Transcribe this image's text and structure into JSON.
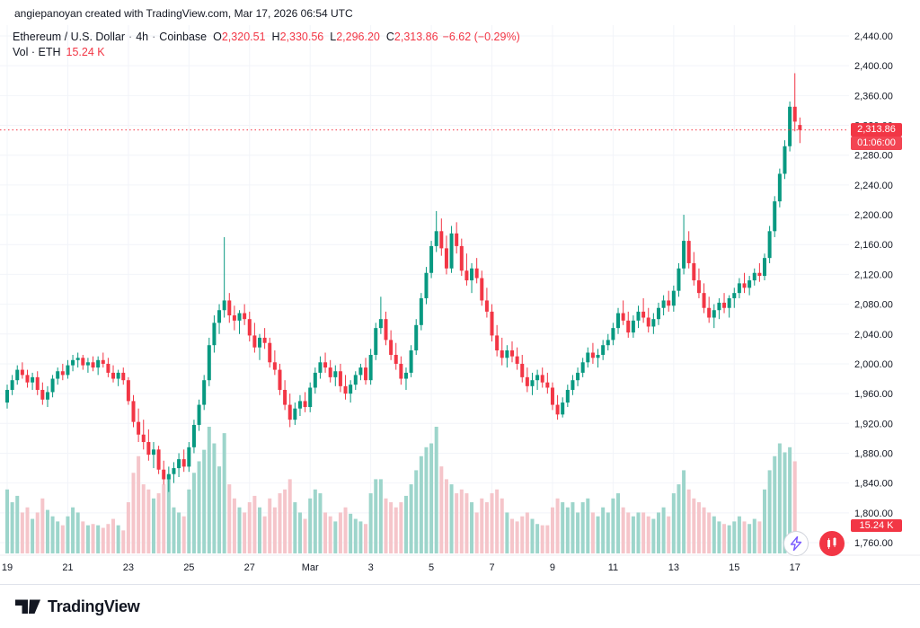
{
  "header": {
    "attribution": "angiepanoyan created with TradingView.com, Mar 17, 2026 06:54 UTC"
  },
  "legend": {
    "symbol": "Ethereum / U.S. Dollar",
    "dot": "·",
    "interval": "4h",
    "exchange": "Coinbase",
    "o_label": "O",
    "o_value": "2,320.51",
    "h_label": "H",
    "h_value": "2,330.56",
    "l_label": "L",
    "l_value": "2,296.20",
    "c_label": "C",
    "c_value": "2,313.86",
    "change": "−6.62 (−0.29%)",
    "volume_label": "Vol · ETH",
    "volume_value": "15.24 K"
  },
  "badges": {
    "price": "2,313.86",
    "countdown": "01:06:00",
    "volume": "15.24 K"
  },
  "price_scale": {
    "ticks": [
      "2,440.00",
      "2,400.00",
      "2,360.00",
      "2,320.00",
      "2,280.00",
      "2,240.00",
      "2,200.00",
      "2,160.00",
      "2,120.00",
      "2,080.00",
      "2,040.00",
      "2,000.00",
      "1,960.00",
      "1,920.00",
      "1,880.00",
      "1,840.00",
      "1,800.00",
      "1,760.00"
    ]
  },
  "footer": {
    "brand": "TradingView"
  },
  "colors": {
    "up": "#089981",
    "down": "#f23645",
    "vol_up": "#9dd5cb",
    "vol_down": "#f5c5ca",
    "grid": "#f2f4f9",
    "axis_text": "#131722",
    "badge_red": "#f23645"
  },
  "chart_data": {
    "type": "candlestick",
    "title": "Ethereum / U.S. Dollar, 4h, Coinbase",
    "interval_hours": 4,
    "volume_unit": "K ETH",
    "price_axis": {
      "min": 1760,
      "max": 2440,
      "tick_step": 40
    },
    "last_price": 2313.86,
    "last_ohlc": {
      "o": 2320.51,
      "h": 2330.56,
      "l": 2296.2,
      "c": 2313.86,
      "change": -6.62,
      "change_pct": -0.29
    },
    "x_labels": [
      {
        "i": 0,
        "t": "19"
      },
      {
        "i": 12,
        "t": "21"
      },
      {
        "i": 24,
        "t": "23"
      },
      {
        "i": 36,
        "t": "25"
      },
      {
        "i": 48,
        "t": "27"
      },
      {
        "i": 60,
        "t": "Mar"
      },
      {
        "i": 72,
        "t": "3"
      },
      {
        "i": 84,
        "t": "5"
      },
      {
        "i": 96,
        "t": "7"
      },
      {
        "i": 108,
        "t": "9"
      },
      {
        "i": 120,
        "t": "11"
      },
      {
        "i": 132,
        "t": "13"
      },
      {
        "i": 144,
        "t": "15"
      },
      {
        "i": 156,
        "t": "17"
      }
    ],
    "candles": [
      [
        1948,
        1972,
        1940,
        1965,
        50
      ],
      [
        1965,
        1985,
        1958,
        1978,
        40
      ],
      [
        1978,
        1998,
        1972,
        1992,
        45
      ],
      [
        1992,
        2002,
        1980,
        1985,
        32
      ],
      [
        1985,
        1992,
        1968,
        1975,
        36
      ],
      [
        1975,
        1988,
        1965,
        1982,
        27
      ],
      [
        1982,
        1990,
        1958,
        1965,
        32
      ],
      [
        1965,
        1975,
        1945,
        1952,
        43
      ],
      [
        1952,
        1970,
        1942,
        1962,
        34
      ],
      [
        1962,
        1985,
        1955,
        1980,
        29
      ],
      [
        1980,
        1995,
        1972,
        1990,
        25
      ],
      [
        1990,
        2000,
        1978,
        1985,
        22
      ],
      [
        1985,
        2005,
        1980,
        1998,
        29
      ],
      [
        1998,
        2012,
        1990,
        2005,
        36
      ],
      [
        2005,
        2015,
        1995,
        2008,
        32
      ],
      [
        2008,
        2012,
        1992,
        1998,
        25
      ],
      [
        1998,
        2008,
        1988,
        2002,
        22
      ],
      [
        2002,
        2010,
        1990,
        1995,
        23
      ],
      [
        1995,
        2010,
        1985,
        2005,
        22
      ],
      [
        2005,
        2015,
        1995,
        2000,
        20
      ],
      [
        2000,
        2008,
        1982,
        1988,
        23
      ],
      [
        1988,
        1998,
        1975,
        1980,
        27
      ],
      [
        1980,
        1992,
        1970,
        1988,
        22
      ],
      [
        1988,
        1995,
        1972,
        1978,
        18
      ],
      [
        1978,
        1982,
        1945,
        1950,
        40
      ],
      [
        1950,
        1958,
        1915,
        1922,
        63
      ],
      [
        1922,
        1940,
        1895,
        1905,
        76
      ],
      [
        1905,
        1925,
        1885,
        1895,
        54
      ],
      [
        1895,
        1912,
        1870,
        1878,
        50
      ],
      [
        1878,
        1895,
        1860,
        1885,
        43
      ],
      [
        1885,
        1890,
        1852,
        1858,
        47
      ],
      [
        1858,
        1870,
        1838,
        1845,
        54
      ],
      [
        1845,
        1862,
        1828,
        1852,
        61
      ],
      [
        1852,
        1868,
        1840,
        1860,
        36
      ],
      [
        1860,
        1880,
        1848,
        1872,
        32
      ],
      [
        1872,
        1885,
        1855,
        1862,
        29
      ],
      [
        1862,
        1895,
        1855,
        1888,
        50
      ],
      [
        1888,
        1925,
        1880,
        1918,
        63
      ],
      [
        1918,
        1952,
        1910,
        1945,
        72
      ],
      [
        1945,
        1985,
        1938,
        1978,
        81
      ],
      [
        1978,
        2035,
        1970,
        2025,
        99
      ],
      [
        2025,
        2065,
        2015,
        2055,
        86
      ],
      [
        2055,
        2080,
        2040,
        2072,
        68
      ],
      [
        2072,
        2170,
        2062,
        2085,
        94
      ],
      [
        2085,
        2095,
        2055,
        2065,
        54
      ],
      [
        2065,
        2078,
        2045,
        2058,
        43
      ],
      [
        2058,
        2072,
        2040,
        2068,
        36
      ],
      [
        2068,
        2080,
        2052,
        2060,
        32
      ],
      [
        2060,
        2070,
        2030,
        2038,
        40
      ],
      [
        2038,
        2055,
        2015,
        2022,
        45
      ],
      [
        2022,
        2040,
        2005,
        2035,
        36
      ],
      [
        2035,
        2048,
        2020,
        2028,
        29
      ],
      [
        2028,
        2035,
        1995,
        2002,
        43
      ],
      [
        2002,
        2018,
        1985,
        1992,
        36
      ],
      [
        1992,
        2000,
        1958,
        1965,
        47
      ],
      [
        1965,
        1978,
        1938,
        1945,
        50
      ],
      [
        1945,
        1960,
        1915,
        1925,
        58
      ],
      [
        1925,
        1948,
        1918,
        1940,
        40
      ],
      [
        1940,
        1958,
        1930,
        1950,
        32
      ],
      [
        1950,
        1962,
        1935,
        1942,
        27
      ],
      [
        1942,
        1975,
        1935,
        1968,
        43
      ],
      [
        1968,
        1995,
        1960,
        1988,
        50
      ],
      [
        1988,
        2010,
        1980,
        2002,
        47
      ],
      [
        2002,
        2015,
        1988,
        1995,
        32
      ],
      [
        1995,
        2005,
        1975,
        1982,
        29
      ],
      [
        1982,
        1998,
        1970,
        1990,
        25
      ],
      [
        1990,
        2000,
        1962,
        1970,
        32
      ],
      [
        1970,
        1985,
        1952,
        1960,
        36
      ],
      [
        1960,
        1978,
        1948,
        1972,
        31
      ],
      [
        1972,
        1990,
        1965,
        1985,
        27
      ],
      [
        1985,
        2000,
        1978,
        1995,
        25
      ],
      [
        1995,
        2008,
        1972,
        1978,
        23
      ],
      [
        1978,
        2020,
        1972,
        2012,
        47
      ],
      [
        2012,
        2055,
        2005,
        2048,
        58
      ],
      [
        2048,
        2090,
        2040,
        2060,
        58
      ],
      [
        2060,
        2070,
        2025,
        2032,
        43
      ],
      [
        2032,
        2045,
        2005,
        2012,
        40
      ],
      [
        2012,
        2028,
        1992,
        2000,
        36
      ],
      [
        2000,
        2010,
        1972,
        1980,
        40
      ],
      [
        1980,
        1995,
        1965,
        1988,
        45
      ],
      [
        1988,
        2025,
        1982,
        2018,
        54
      ],
      [
        2018,
        2060,
        2012,
        2052,
        65
      ],
      [
        2052,
        2095,
        2045,
        2088,
        76
      ],
      [
        2088,
        2130,
        2080,
        2122,
        83
      ],
      [
        2122,
        2165,
        2115,
        2158,
        86
      ],
      [
        2158,
        2205,
        2150,
        2178,
        99
      ],
      [
        2178,
        2195,
        2145,
        2155,
        68
      ],
      [
        2155,
        2172,
        2120,
        2128,
        58
      ],
      [
        2128,
        2185,
        2122,
        2175,
        54
      ],
      [
        2175,
        2190,
        2148,
        2158,
        47
      ],
      [
        2158,
        2168,
        2118,
        2125,
        50
      ],
      [
        2125,
        2148,
        2105,
        2112,
        47
      ],
      [
        2112,
        2135,
        2095,
        2128,
        40
      ],
      [
        2128,
        2142,
        2108,
        2115,
        32
      ],
      [
        2115,
        2125,
        2078,
        2085,
        43
      ],
      [
        2085,
        2102,
        2062,
        2070,
        40
      ],
      [
        2070,
        2080,
        2030,
        2038,
        47
      ],
      [
        2038,
        2052,
        2010,
        2018,
        50
      ],
      [
        2018,
        2035,
        1998,
        2008,
        43
      ],
      [
        2008,
        2025,
        1995,
        2018,
        32
      ],
      [
        2018,
        2030,
        2002,
        2010,
        27
      ],
      [
        2010,
        2022,
        1992,
        2000,
        25
      ],
      [
        2000,
        2012,
        1975,
        1982,
        29
      ],
      [
        1982,
        1995,
        1962,
        1970,
        32
      ],
      [
        1970,
        1988,
        1958,
        1978,
        27
      ],
      [
        1978,
        1992,
        1965,
        1985,
        23
      ],
      [
        1985,
        1995,
        1968,
        1975,
        22
      ],
      [
        1975,
        1988,
        1960,
        1968,
        22
      ],
      [
        1968,
        1975,
        1938,
        1945,
        36
      ],
      [
        1945,
        1958,
        1925,
        1932,
        43
      ],
      [
        1932,
        1955,
        1928,
        1948,
        40
      ],
      [
        1948,
        1972,
        1942,
        1965,
        36
      ],
      [
        1965,
        1985,
        1958,
        1978,
        40
      ],
      [
        1978,
        1995,
        1970,
        1988,
        32
      ],
      [
        1988,
        2008,
        1982,
        2002,
        40
      ],
      [
        2002,
        2022,
        1995,
        2015,
        43
      ],
      [
        2015,
        2028,
        2000,
        2008,
        32
      ],
      [
        2008,
        2020,
        1995,
        2012,
        29
      ],
      [
        2012,
        2032,
        2005,
        2025,
        36
      ],
      [
        2025,
        2040,
        2018,
        2032,
        32
      ],
      [
        2032,
        2055,
        2025,
        2048,
        43
      ],
      [
        2048,
        2075,
        2040,
        2068,
        47
      ],
      [
        2068,
        2085,
        2052,
        2058,
        36
      ],
      [
        2058,
        2070,
        2035,
        2042,
        32
      ],
      [
        2042,
        2065,
        2035,
        2058,
        29
      ],
      [
        2058,
        2078,
        2048,
        2070,
        32
      ],
      [
        2070,
        2088,
        2055,
        2062,
        32
      ],
      [
        2062,
        2075,
        2042,
        2050,
        29
      ],
      [
        2050,
        2068,
        2040,
        2060,
        27
      ],
      [
        2060,
        2082,
        2052,
        2075,
        32
      ],
      [
        2075,
        2092,
        2065,
        2085,
        36
      ],
      [
        2085,
        2098,
        2070,
        2078,
        29
      ],
      [
        2078,
        2105,
        2070,
        2098,
        47
      ],
      [
        2098,
        2135,
        2090,
        2128,
        54
      ],
      [
        2128,
        2200,
        2120,
        2165,
        65
      ],
      [
        2165,
        2178,
        2128,
        2135,
        50
      ],
      [
        2135,
        2150,
        2105,
        2112,
        43
      ],
      [
        2112,
        2128,
        2088,
        2095,
        40
      ],
      [
        2095,
        2108,
        2068,
        2075,
        36
      ],
      [
        2075,
        2090,
        2055,
        2062,
        32
      ],
      [
        2062,
        2080,
        2048,
        2072,
        29
      ],
      [
        2072,
        2088,
        2060,
        2082,
        25
      ],
      [
        2082,
        2095,
        2068,
        2075,
        23
      ],
      [
        2075,
        2092,
        2062,
        2088,
        22
      ],
      [
        2088,
        2102,
        2075,
        2095,
        25
      ],
      [
        2095,
        2115,
        2088,
        2108,
        29
      ],
      [
        2108,
        2122,
        2095,
        2102,
        25
      ],
      [
        2102,
        2118,
        2092,
        2112,
        23
      ],
      [
        2112,
        2128,
        2105,
        2122,
        27
      ],
      [
        2122,
        2135,
        2110,
        2118,
        25
      ],
      [
        2118,
        2148,
        2112,
        2142,
        50
      ],
      [
        2142,
        2185,
        2135,
        2178,
        65
      ],
      [
        2178,
        2225,
        2170,
        2218,
        76
      ],
      [
        2218,
        2262,
        2210,
        2255,
        86
      ],
      [
        2255,
        2300,
        2248,
        2292,
        79
      ],
      [
        2292,
        2352,
        2285,
        2345,
        83
      ],
      [
        2345,
        2390,
        2312,
        2325,
        72
      ],
      [
        2320.51,
        2330.56,
        2296.2,
        2313.86,
        15.24
      ]
    ]
  }
}
